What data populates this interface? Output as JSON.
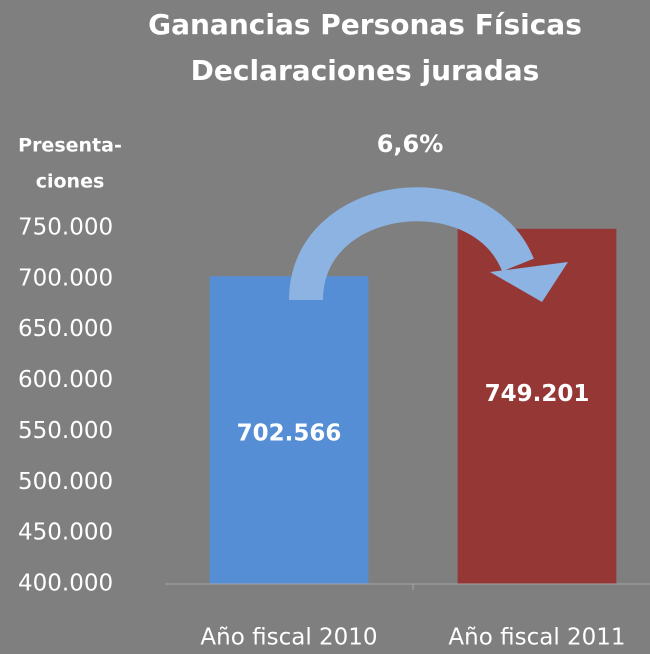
{
  "chart_data": {
    "type": "bar",
    "title": [
      "Ganancias Personas Físicas",
      "Declaraciones juradas"
    ],
    "y_label": [
      "Presenta-",
      "ciones"
    ],
    "annotation": "6,6%",
    "categories": [
      "Año fiscal 2010",
      "Año fiscal 2011"
    ],
    "values": [
      702566,
      749201
    ],
    "value_labels": [
      "702.566",
      "749.201"
    ],
    "colors": [
      "#558ed5",
      "#953735"
    ],
    "ylim": [
      400000,
      750000
    ],
    "yticks": [
      {
        "value": 400000,
        "label": "400.000"
      },
      {
        "value": 450000,
        "label": "450.000"
      },
      {
        "value": 500000,
        "label": "500.000"
      },
      {
        "value": 550000,
        "label": "550.000"
      },
      {
        "value": 600000,
        "label": "600.000"
      },
      {
        "value": 650000,
        "label": "650.000"
      },
      {
        "value": 700000,
        "label": "700.000"
      },
      {
        "value": 750000,
        "label": "750.000"
      }
    ],
    "grid": false
  }
}
